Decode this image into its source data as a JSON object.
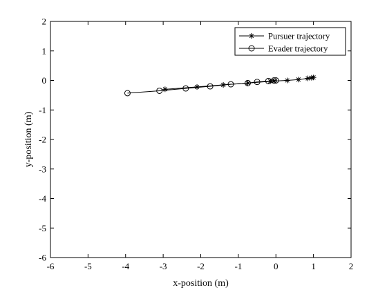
{
  "chart_data": {
    "type": "line",
    "xlabel": "x-position (m)",
    "ylabel": "y-position (m)",
    "xlim": [
      -6,
      2
    ],
    "ylim": [
      -6,
      2
    ],
    "xticks": [
      -6,
      -5,
      -4,
      -3,
      -2,
      -1,
      0,
      1,
      2
    ],
    "yticks": [
      -6,
      -5,
      -4,
      -3,
      -2,
      -1,
      0,
      1,
      2
    ],
    "grid": false,
    "legend_position": "top-right",
    "series": [
      {
        "name": "Pursuer trajectory",
        "marker": "asterisk",
        "color": "#000000",
        "x": [
          1.0,
          0.95,
          0.85,
          0.6,
          0.3,
          -0.05,
          -0.15,
          -0.75,
          -1.4,
          -2.1,
          -2.95
        ],
        "y": [
          0.1,
          0.09,
          0.07,
          0.03,
          0.0,
          -0.02,
          -0.03,
          -0.09,
          -0.15,
          -0.22,
          -0.3
        ]
      },
      {
        "name": "Evader trajectory",
        "marker": "circle",
        "color": "#000000",
        "x": [
          0.0,
          -0.05,
          -0.2,
          -0.5,
          -0.75,
          -1.2,
          -1.75,
          -2.4,
          -3.1,
          -3.95
        ],
        "y": [
          0.0,
          0.0,
          -0.02,
          -0.05,
          -0.09,
          -0.13,
          -0.2,
          -0.27,
          -0.35,
          -0.43
        ]
      }
    ]
  }
}
